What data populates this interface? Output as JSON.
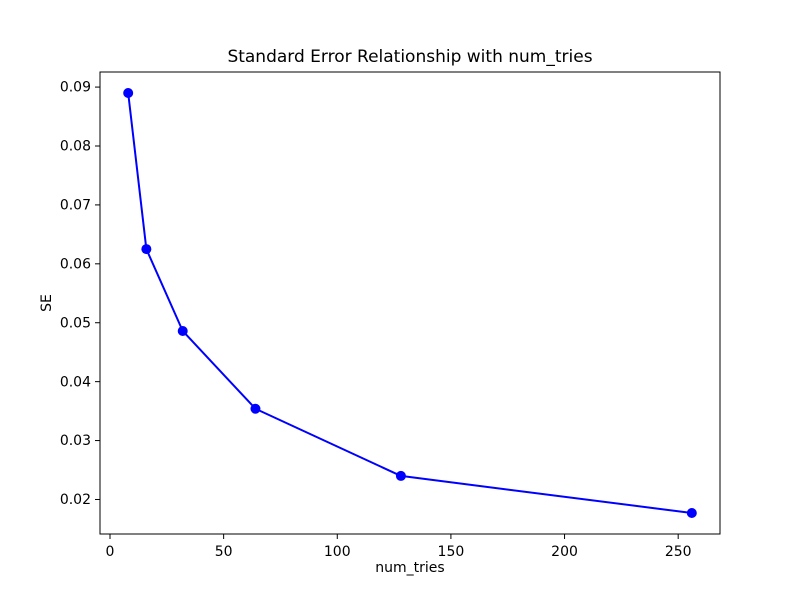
{
  "figure": {
    "background_color": "#ffffff",
    "axis_color": "#000000",
    "text_color": "#000000"
  },
  "chart_data": {
    "type": "line",
    "title": "Standard Error Relationship with num_tries",
    "xlabel": "num_tries",
    "ylabel": "SE",
    "x": [
      8,
      16,
      32,
      64,
      128,
      256
    ],
    "y": [
      0.089,
      0.0625,
      0.0486,
      0.0354,
      0.024,
      0.0177
    ],
    "line_color": "#0000ff",
    "marker": "circle",
    "marker_color": "#0000ff",
    "xlim": [
      -4.4,
      268.4
    ],
    "ylim": [
      0.01414,
      0.09256
    ],
    "xticks": [
      0,
      50,
      100,
      150,
      200,
      250
    ],
    "yticks": [
      0.02,
      0.03,
      0.04,
      0.05,
      0.06,
      0.07,
      0.08,
      0.09
    ],
    "ytick_decimals": 2,
    "grid": false,
    "legend_visible": false
  }
}
